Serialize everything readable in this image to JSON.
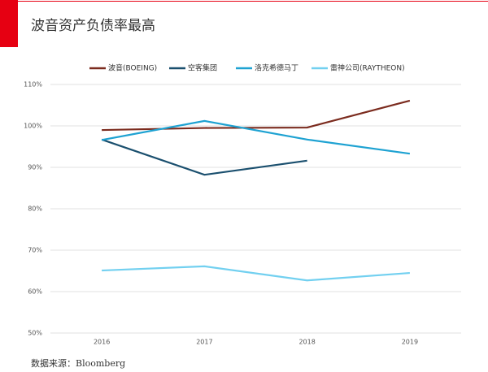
{
  "chart_data": {
    "type": "line",
    "title": "波音资产负债率最高",
    "source": "数据来源：Bloomberg",
    "categories": [
      "2016",
      "2017",
      "2018",
      "2019"
    ],
    "series": [
      {
        "name": "波音(BOEING)",
        "color": "#7b2b1e",
        "values": [
          99.0,
          99.5,
          99.6,
          106.1
        ]
      },
      {
        "name": "空客集团",
        "color": "#1a4f6e",
        "values": [
          96.7,
          88.2,
          91.6,
          null
        ]
      },
      {
        "name": "洛克希德马丁",
        "color": "#1ea2d2",
        "values": [
          96.6,
          101.2,
          96.7,
          93.3
        ]
      },
      {
        "name": "雷神公司(RAYTHEON)",
        "color": "#72d0f0",
        "values": [
          65.1,
          66.1,
          62.7,
          64.5
        ]
      }
    ],
    "ylim": [
      50,
      110
    ],
    "yticks": [
      {
        "value": 50,
        "label": "50%"
      },
      {
        "value": 60,
        "label": "60%"
      },
      {
        "value": 70,
        "label": "70%"
      },
      {
        "value": 80,
        "label": "80%"
      },
      {
        "value": 90,
        "label": "90%"
      },
      {
        "value": 100,
        "label": "100%"
      },
      {
        "value": 110,
        "label": "110%"
      }
    ],
    "grid": true
  }
}
